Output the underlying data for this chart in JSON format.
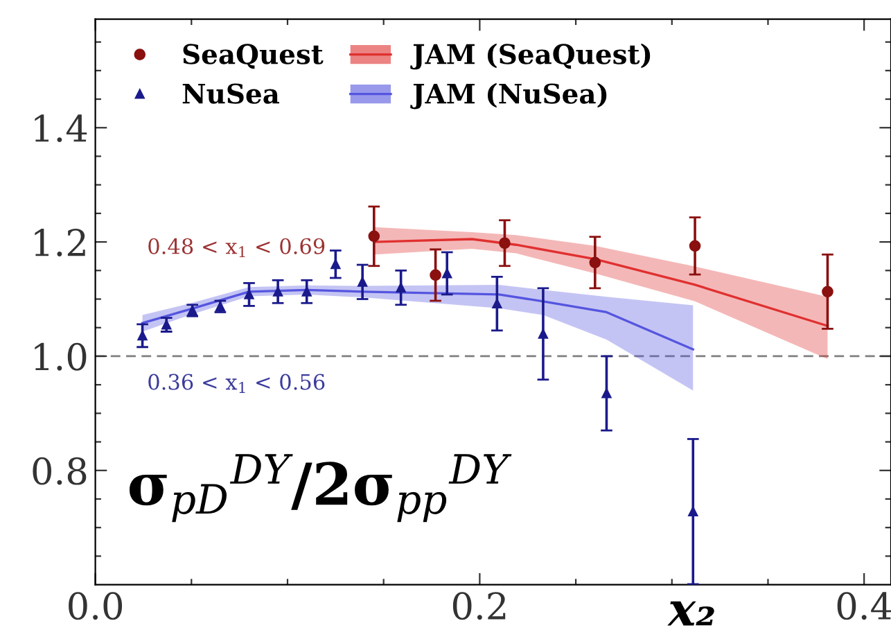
{
  "chart_data": {
    "type": "scatter",
    "xlabel": "x₂",
    "ylabel": "σ$_{pD}$$^{DY}$/2σ$_{pp}$$^{DY}$",
    "xlim": [
      0,
      0.414
    ],
    "ylim": [
      0.6,
      1.59
    ],
    "xticks": [
      {
        "value": 0,
        "label": "0.0"
      },
      {
        "value": 0.05,
        "label": null
      },
      {
        "value": 0.1,
        "label": null
      },
      {
        "value": 0.15,
        "label": null
      },
      {
        "value": 0.2,
        "label": "0.2"
      },
      {
        "value": 0.25,
        "label": null
      },
      {
        "value": 0.3,
        "label": null
      },
      {
        "value": 0.35,
        "label": null
      },
      {
        "value": 0.4,
        "label": "0.4"
      }
    ],
    "yticks": [
      {
        "value": 0.65,
        "label": null
      },
      {
        "value": 0.7,
        "label": null
      },
      {
        "value": 0.75,
        "label": null
      },
      0.8,
      {
        "value": 0.85,
        "label": null
      },
      {
        "value": 0.9,
        "label": null
      },
      {
        "value": 0.95,
        "label": null
      },
      {
        "value": 1.0,
        "label": "1.0"
      },
      {
        "value": 1.05,
        "label": null
      },
      {
        "value": 1.1,
        "label": null
      },
      {
        "value": 1.15,
        "label": null
      },
      1.2,
      {
        "value": 1.25,
        "label": null
      },
      {
        "value": 1.3,
        "label": null
      },
      {
        "value": 1.35,
        "label": null
      },
      1.4,
      {
        "value": 1.45,
        "label": null
      },
      {
        "value": 1.5,
        "label": null
      },
      {
        "value": 1.55,
        "label": null
      }
    ],
    "grid": false,
    "legend": "top left",
    "ref_lines": [
      {
        "axis": "y",
        "value": 1.0,
        "color": "#808080",
        "line_style": "dashed"
      }
    ],
    "annotations": [
      "0.48 < x$_{1}$ < 0.69",
      "0.36 < x$_{1}$ < 0.56"
    ],
    "series": [
      {
        "name": "SeaQuest",
        "marker": "circle",
        "color": "#8b1010",
        "x": [
          0.145,
          0.177,
          0.213,
          0.26,
          0.312,
          0.381
        ],
        "values": [
          1.21,
          1.142,
          1.198,
          1.164,
          1.193,
          1.113
        ],
        "errors": [
          0.052,
          0.045,
          0.04,
          0.045,
          0.05,
          0.065
        ]
      },
      {
        "name": "NuSea",
        "marker": "triangle",
        "color": "#1a1a8c",
        "x": [
          0.0245,
          0.037,
          0.0505,
          0.065,
          0.08,
          0.095,
          0.11,
          0.125,
          0.139,
          0.159,
          0.183,
          0.209,
          0.233,
          0.266,
          0.311
        ],
        "values": [
          1.036,
          1.055,
          1.08,
          1.087,
          1.108,
          1.113,
          1.113,
          1.161,
          1.13,
          1.12,
          1.145,
          1.092,
          1.039,
          0.935,
          0.728
        ],
        "errors": [
          0.02,
          0.012,
          0.01,
          0.01,
          0.02,
          0.02,
          0.02,
          0.024,
          0.03,
          0.03,
          0.037,
          0.047,
          0.08,
          0.065,
          0.127
        ]
      },
      {
        "name": "JAM (SeaQuest)",
        "type": "line",
        "color": "#e03030",
        "x": [
          0.145,
          0.196,
          0.219,
          0.26,
          0.312,
          0.381
        ],
        "values": [
          1.2,
          1.205,
          1.195,
          1.17,
          1.125,
          1.053
        ],
        "lower": [
          1.178,
          1.188,
          1.18,
          1.145,
          1.096,
          0.995
        ],
        "upper": [
          1.226,
          1.217,
          1.212,
          1.193,
          1.157,
          1.104
        ]
      },
      {
        "name": "JAM (NuSea)",
        "type": "line",
        "color": "#5555e0",
        "x": [
          0.0245,
          0.05,
          0.08,
          0.11,
          0.139,
          0.21,
          0.233,
          0.266,
          0.311
        ],
        "values": [
          1.058,
          1.083,
          1.113,
          1.116,
          1.113,
          1.108,
          1.096,
          1.077,
          1.012
        ],
        "lower": [
          1.043,
          1.073,
          1.105,
          1.108,
          1.103,
          1.084,
          1.072,
          1.029,
          0.94
        ],
        "upper": [
          1.072,
          1.093,
          1.121,
          1.124,
          1.123,
          1.125,
          1.116,
          1.104,
          1.089
        ]
      }
    ]
  }
}
